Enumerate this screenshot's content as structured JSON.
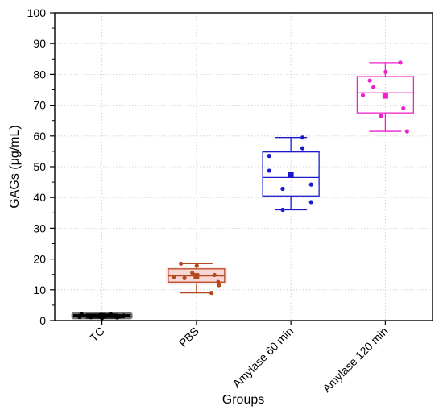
{
  "chart_data": {
    "type": "box",
    "xlabel": "Groups",
    "ylabel": "GAGs (μg/mL)",
    "ylim": [
      0,
      100
    ],
    "yticks": [
      0,
      10,
      20,
      30,
      40,
      50,
      60,
      70,
      80,
      90,
      100
    ],
    "grid": "on (dotted)",
    "categories": [
      "TC",
      "PBS",
      "Amylase 60 min",
      "Amylase 120 min"
    ],
    "colors": [
      "#000000",
      "#b5471f",
      "#1a1acc",
      "#ee22cc"
    ],
    "box_fills": [
      "#000000",
      "#f9d6d6",
      "#ffffff",
      "#ffffff"
    ],
    "boxes": [
      {
        "q1": 1.2,
        "median": 1.5,
        "q3": 1.9,
        "whisker_low": 0.8,
        "whisker_high": 2.1,
        "mean": 1.5
      },
      {
        "q1": 12.5,
        "median": 14.5,
        "q3": 16.8,
        "whisker_low": 9.0,
        "whisker_high": 18.5,
        "mean": 14.5
      },
      {
        "q1": 40.5,
        "median": 46.5,
        "q3": 54.8,
        "whisker_low": 36.0,
        "whisker_high": 59.5,
        "mean": 47.5
      },
      {
        "q1": 67.5,
        "median": 74.0,
        "q3": 79.3,
        "whisker_low": 61.5,
        "whisker_high": 83.8,
        "mean": 73.0
      }
    ],
    "points": [
      [
        0.8,
        1.0,
        1.2,
        1.3,
        1.5,
        1.5,
        1.6,
        1.7,
        1.8,
        2.0,
        2.1,
        1.4,
        1.1
      ],
      [
        12.5,
        13.8,
        15.5,
        14.8,
        14.2,
        9.0,
        17.8,
        18.5,
        11.5
      ],
      [
        56.0,
        53.5,
        44.2,
        42.8,
        36.0,
        38.5,
        48.7,
        59.5
      ],
      [
        78.0,
        80.8,
        83.8,
        73.2,
        69.0,
        66.5,
        75.8,
        61.5
      ]
    ]
  }
}
